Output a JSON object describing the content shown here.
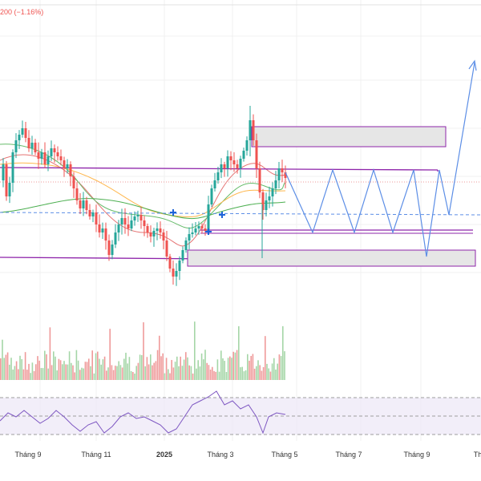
{
  "header": {
    "price_change": "200 (−1.16%)"
  },
  "colors": {
    "up": "#26a69a",
    "down": "#ef5350",
    "purple": "#8e24aa",
    "projection": "#5c8ee6",
    "rsi": "#7e57c2",
    "grid": "#f0f0f0",
    "zone_fill": "#e6e6e6"
  },
  "chart_data": {
    "type": "candlestick",
    "x_axis_labels": [
      "Tháng 9",
      "Tháng 11",
      "2025",
      "Tháng 3",
      "Tháng 5",
      "Tháng 7",
      "Tháng 9",
      "Th"
    ],
    "x_label_bold": "2025",
    "overlays": {
      "moving_averages": 4,
      "rectangles": 2,
      "horizontal_levels": 4,
      "projection_path": "zigzag",
      "markers": "blue-cross"
    },
    "rsi_panel": {
      "visible": true
    }
  }
}
